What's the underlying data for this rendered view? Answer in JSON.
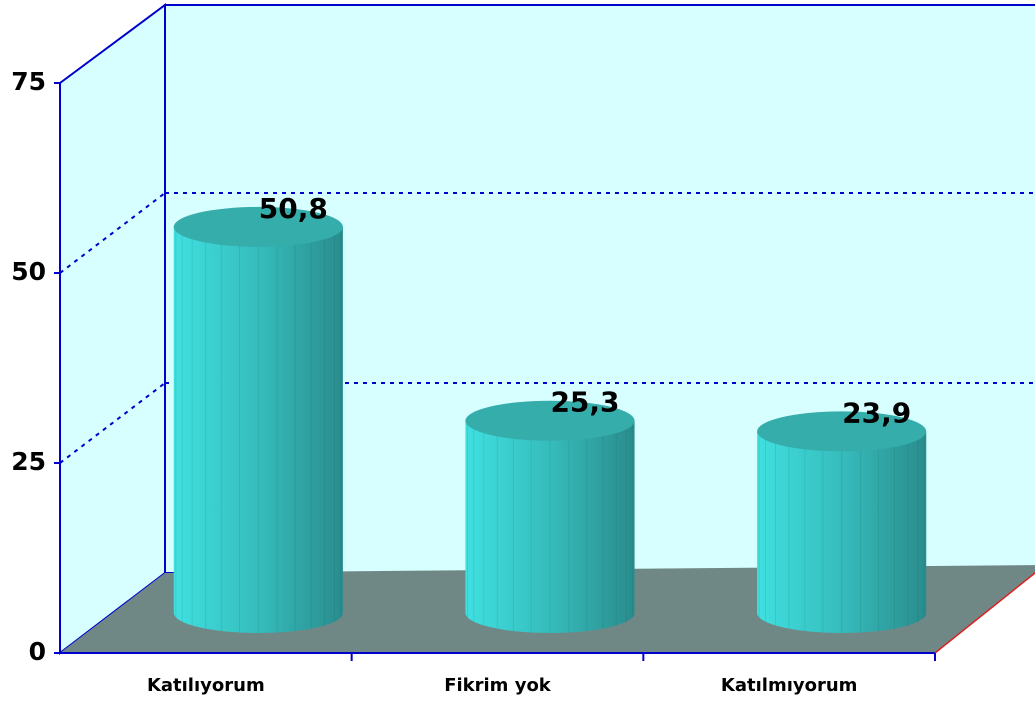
{
  "chart_data": {
    "type": "bar3d",
    "categories": [
      "Katılıyorum",
      "Fikrim yok",
      "Katılmıyorum"
    ],
    "values": [
      50.8,
      25.3,
      23.9
    ],
    "value_labels": [
      "50,8",
      "25,3",
      "23,9"
    ],
    "color": "#40d8d8",
    "ylim": [
      0,
      75
    ],
    "yticks": [
      0,
      25,
      50,
      75
    ],
    "grid": true
  }
}
